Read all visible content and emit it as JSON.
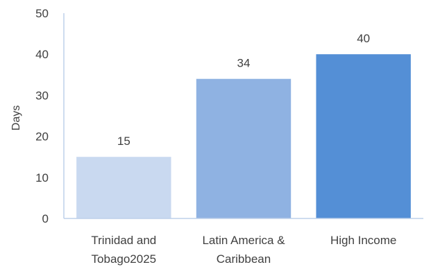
{
  "chart_data": {
    "type": "bar",
    "ylabel": "Days",
    "ylim": [
      0,
      50
    ],
    "yticks": [
      0,
      10,
      20,
      30,
      40,
      50
    ],
    "grid": false,
    "categories": [
      [
        "Trinidad and",
        "Tobago2025"
      ],
      [
        "Latin America &",
        "Caribbean"
      ],
      [
        "High Income"
      ]
    ],
    "values": [
      15,
      34,
      40
    ],
    "data_labels": [
      "15",
      "34",
      "40"
    ],
    "colors": [
      "#c9d9f0",
      "#8fb2e2",
      "#548fd6"
    ],
    "axis_color": "#bdd0ea"
  }
}
